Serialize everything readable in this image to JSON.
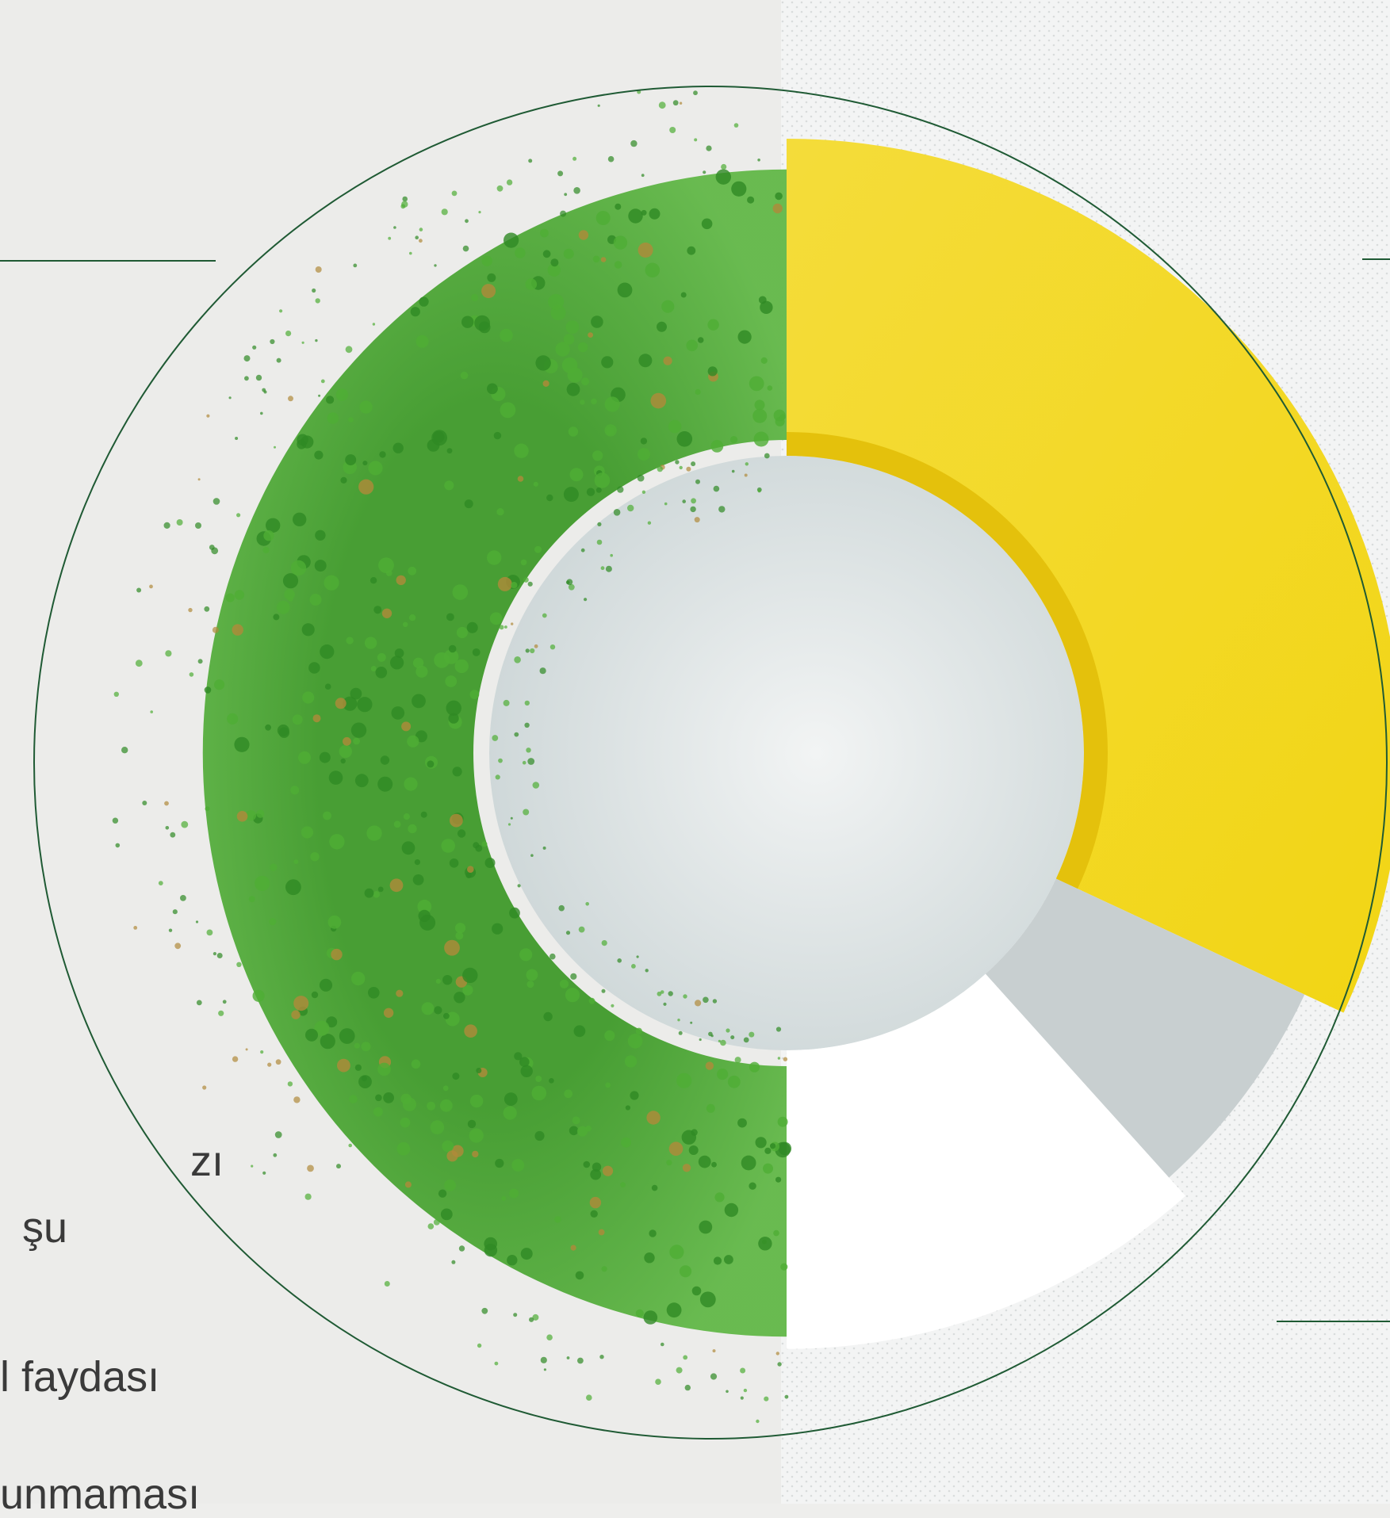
{
  "text_lines": [
    "zı",
    "şu",
    "l faydası",
    "unmaması"
  ]
}
